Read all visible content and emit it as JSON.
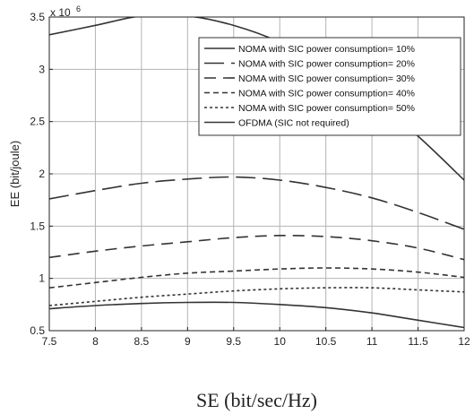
{
  "chart_data": {
    "type": "line",
    "title": "",
    "xlabel": "SE (bit/sec/Hz)",
    "ylabel": "EE (bit/joule)",
    "y_multiplier_label": "x 10",
    "y_multiplier_exponent": "6",
    "xlim": [
      7.5,
      12
    ],
    "ylim": [
      0.5,
      3.5
    ],
    "xticks": [
      "7.5",
      "8",
      "8.5",
      "9",
      "9.5",
      "10",
      "10.5",
      "11",
      "11.5",
      "12"
    ],
    "yticks": [
      "0.5",
      "1",
      "1.5",
      "2",
      "2.5",
      "3",
      "3.5"
    ],
    "grid": true,
    "legend_position": "top-right",
    "colors": {
      "line": "#333333",
      "grid": "#b4b4b4",
      "axis": "#222222"
    },
    "series": [
      {
        "name": "NOMA with SIC power consumption= 10%",
        "style": "solid",
        "x": [
          7.5,
          8.0,
          8.5,
          9.0,
          9.5,
          10.0,
          10.5,
          11.0,
          11.5,
          12.0
        ],
        "y": [
          3.33,
          3.42,
          3.51,
          3.51,
          3.42,
          3.26,
          3.02,
          2.72,
          2.36,
          1.94
        ]
      },
      {
        "name": "NOMA with SIC power consumption= 20%",
        "style": "dash-long",
        "x": [
          7.5,
          8.0,
          8.5,
          9.0,
          9.5,
          10.0,
          10.5,
          11.0,
          11.5,
          12.0
        ],
        "y": [
          1.76,
          1.84,
          1.91,
          1.95,
          1.97,
          1.94,
          1.87,
          1.77,
          1.63,
          1.47
        ]
      },
      {
        "name": "NOMA with SIC power consumption= 30%",
        "style": "dash-medium",
        "x": [
          7.5,
          8.0,
          8.5,
          9.0,
          9.5,
          10.0,
          10.5,
          11.0,
          11.5,
          12.0
        ],
        "y": [
          1.2,
          1.26,
          1.31,
          1.35,
          1.39,
          1.41,
          1.4,
          1.36,
          1.29,
          1.18
        ]
      },
      {
        "name": "NOMA with SIC power consumption= 40%",
        "style": "dash-short",
        "x": [
          7.5,
          8.0,
          8.5,
          9.0,
          9.5,
          10.0,
          10.5,
          11.0,
          11.5,
          12.0
        ],
        "y": [
          0.91,
          0.96,
          1.01,
          1.05,
          1.07,
          1.09,
          1.1,
          1.09,
          1.06,
          1.01
        ]
      },
      {
        "name": "NOMA with SIC power consumption= 50%",
        "style": "dotted",
        "x": [
          7.5,
          8.0,
          8.5,
          9.0,
          9.5,
          10.0,
          10.5,
          11.0,
          11.5,
          12.0
        ],
        "y": [
          0.74,
          0.78,
          0.82,
          0.85,
          0.88,
          0.9,
          0.91,
          0.91,
          0.89,
          0.87
        ]
      },
      {
        "name": "OFDMA (SIC not required)",
        "style": "solid",
        "x": [
          7.5,
          8.0,
          8.5,
          9.0,
          9.5,
          10.0,
          10.5,
          11.0,
          11.5,
          12.0
        ],
        "y": [
          0.71,
          0.74,
          0.76,
          0.77,
          0.77,
          0.75,
          0.72,
          0.67,
          0.6,
          0.53
        ]
      }
    ]
  }
}
